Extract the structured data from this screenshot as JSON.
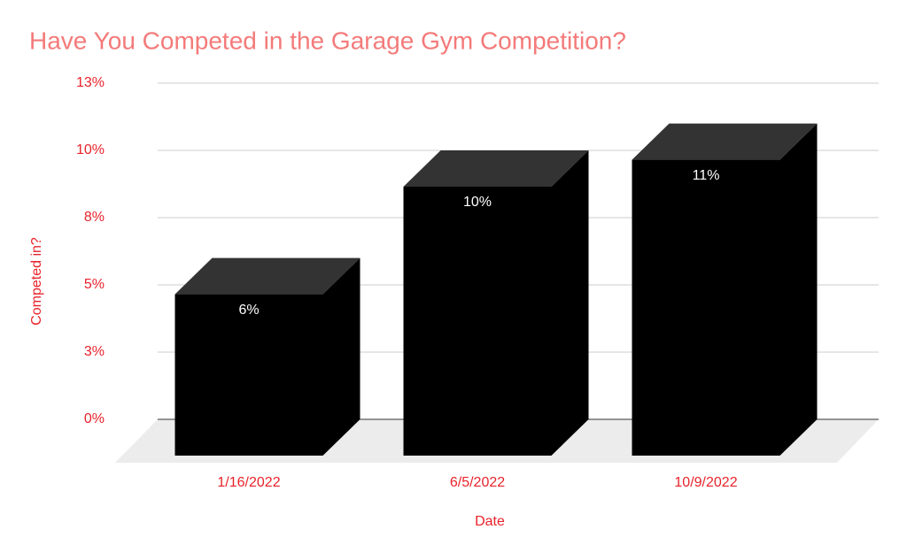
{
  "chart_data": {
    "type": "bar3d",
    "title": "Have You Competed in the Garage Gym Competition?",
    "x_label": "Date",
    "y_label": "Competed in?",
    "categories": [
      "1/16/2022",
      "6/5/2022",
      "10/9/2022"
    ],
    "values": [
      6,
      10,
      11
    ],
    "value_labels": [
      "6%",
      "10%",
      "11%"
    ],
    "color": "#000000",
    "ylim": [
      0,
      12.5
    ],
    "yticks": [
      {
        "value": 0,
        "label": "0%"
      },
      {
        "value": 2.5,
        "label": "3%"
      },
      {
        "value": 5,
        "label": "5%"
      },
      {
        "value": 7.5,
        "label": "8%"
      },
      {
        "value": 10,
        "label": "10%"
      },
      {
        "value": 12.5,
        "label": "13%"
      }
    ],
    "grid": true
  }
}
